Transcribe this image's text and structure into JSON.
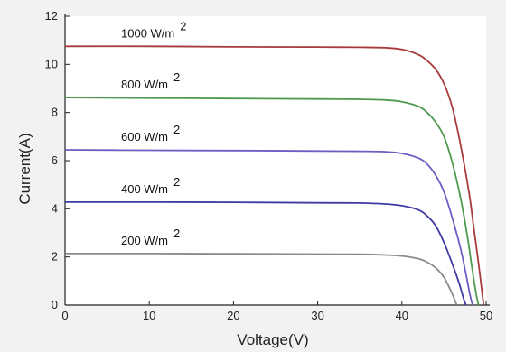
{
  "chart_data": {
    "type": "line",
    "title": "",
    "xlabel": "Voltage(V)",
    "ylabel": "Current(A)",
    "xlim": [
      0,
      50
    ],
    "ylim": [
      0,
      12
    ],
    "xticks": [
      0,
      10,
      20,
      30,
      40,
      50
    ],
    "yticks": [
      0,
      2,
      4,
      6,
      8,
      10,
      12
    ],
    "grid": false,
    "legend": "inline-labels",
    "series": [
      {
        "name": "1000 W/m 2",
        "label_main": "1000  W/m",
        "label_sup": "2",
        "color": "#a83a3a",
        "points": [
          [
            0,
            10.75
          ],
          [
            10,
            10.75
          ],
          [
            20,
            10.73
          ],
          [
            30,
            10.72
          ],
          [
            35,
            10.71
          ],
          [
            38,
            10.69
          ],
          [
            40,
            10.62
          ],
          [
            42,
            10.4
          ],
          [
            43,
            10.15
          ],
          [
            44,
            9.8
          ],
          [
            45,
            9.2
          ],
          [
            46,
            8.2
          ],
          [
            47,
            6.6
          ],
          [
            48,
            4.6
          ],
          [
            48.5,
            3.3
          ],
          [
            49,
            2.0
          ],
          [
            49.5,
            0.6
          ],
          [
            49.7,
            0
          ]
        ]
      },
      {
        "name": "800 W/m 2",
        "label_main": "800  W/m",
        "label_sup": "2",
        "color": "#4f9a4f",
        "points": [
          [
            0,
            8.62
          ],
          [
            10,
            8.6
          ],
          [
            20,
            8.58
          ],
          [
            30,
            8.56
          ],
          [
            35,
            8.55
          ],
          [
            38,
            8.52
          ],
          [
            40,
            8.45
          ],
          [
            42,
            8.25
          ],
          [
            43,
            8.0
          ],
          [
            44,
            7.6
          ],
          [
            45,
            7.0
          ],
          [
            46,
            5.9
          ],
          [
            47,
            4.4
          ],
          [
            47.8,
            2.8
          ],
          [
            48.3,
            1.6
          ],
          [
            48.8,
            0.5
          ],
          [
            49.1,
            0
          ]
        ]
      },
      {
        "name": "600 W/m 2",
        "label_main": "600  W/m",
        "label_sup": "2",
        "color": "#6a5fc2",
        "points": [
          [
            0,
            6.45
          ],
          [
            10,
            6.43
          ],
          [
            20,
            6.42
          ],
          [
            30,
            6.4
          ],
          [
            35,
            6.39
          ],
          [
            38,
            6.37
          ],
          [
            40,
            6.3
          ],
          [
            42,
            6.1
          ],
          [
            43,
            5.85
          ],
          [
            44,
            5.4
          ],
          [
            45,
            4.7
          ],
          [
            46,
            3.6
          ],
          [
            47,
            2.3
          ],
          [
            47.6,
            1.3
          ],
          [
            48.1,
            0.4
          ],
          [
            48.4,
            0
          ]
        ]
      },
      {
        "name": "400 W/m 2",
        "label_main": "400  W/m",
        "label_sup": "2",
        "color": "#3f3aa0",
        "points": [
          [
            0,
            4.28
          ],
          [
            10,
            4.28
          ],
          [
            20,
            4.27
          ],
          [
            30,
            4.25
          ],
          [
            35,
            4.24
          ],
          [
            38,
            4.2
          ],
          [
            40,
            4.13
          ],
          [
            42,
            3.95
          ],
          [
            43,
            3.7
          ],
          [
            44,
            3.3
          ],
          [
            45,
            2.6
          ],
          [
            46,
            1.7
          ],
          [
            46.8,
            0.9
          ],
          [
            47.3,
            0.3
          ],
          [
            47.6,
            0
          ]
        ]
      },
      {
        "name": "200 W/m 2",
        "label_main": "200  W/m",
        "label_sup": "2",
        "color": "#8a8a8a",
        "points": [
          [
            0,
            2.14
          ],
          [
            10,
            2.14
          ],
          [
            20,
            2.13
          ],
          [
            30,
            2.12
          ],
          [
            35,
            2.11
          ],
          [
            38,
            2.08
          ],
          [
            40,
            2.04
          ],
          [
            42,
            1.92
          ],
          [
            43,
            1.78
          ],
          [
            44,
            1.55
          ],
          [
            45,
            1.15
          ],
          [
            45.8,
            0.6
          ],
          [
            46.3,
            0.2
          ],
          [
            46.5,
            0
          ]
        ]
      }
    ]
  }
}
